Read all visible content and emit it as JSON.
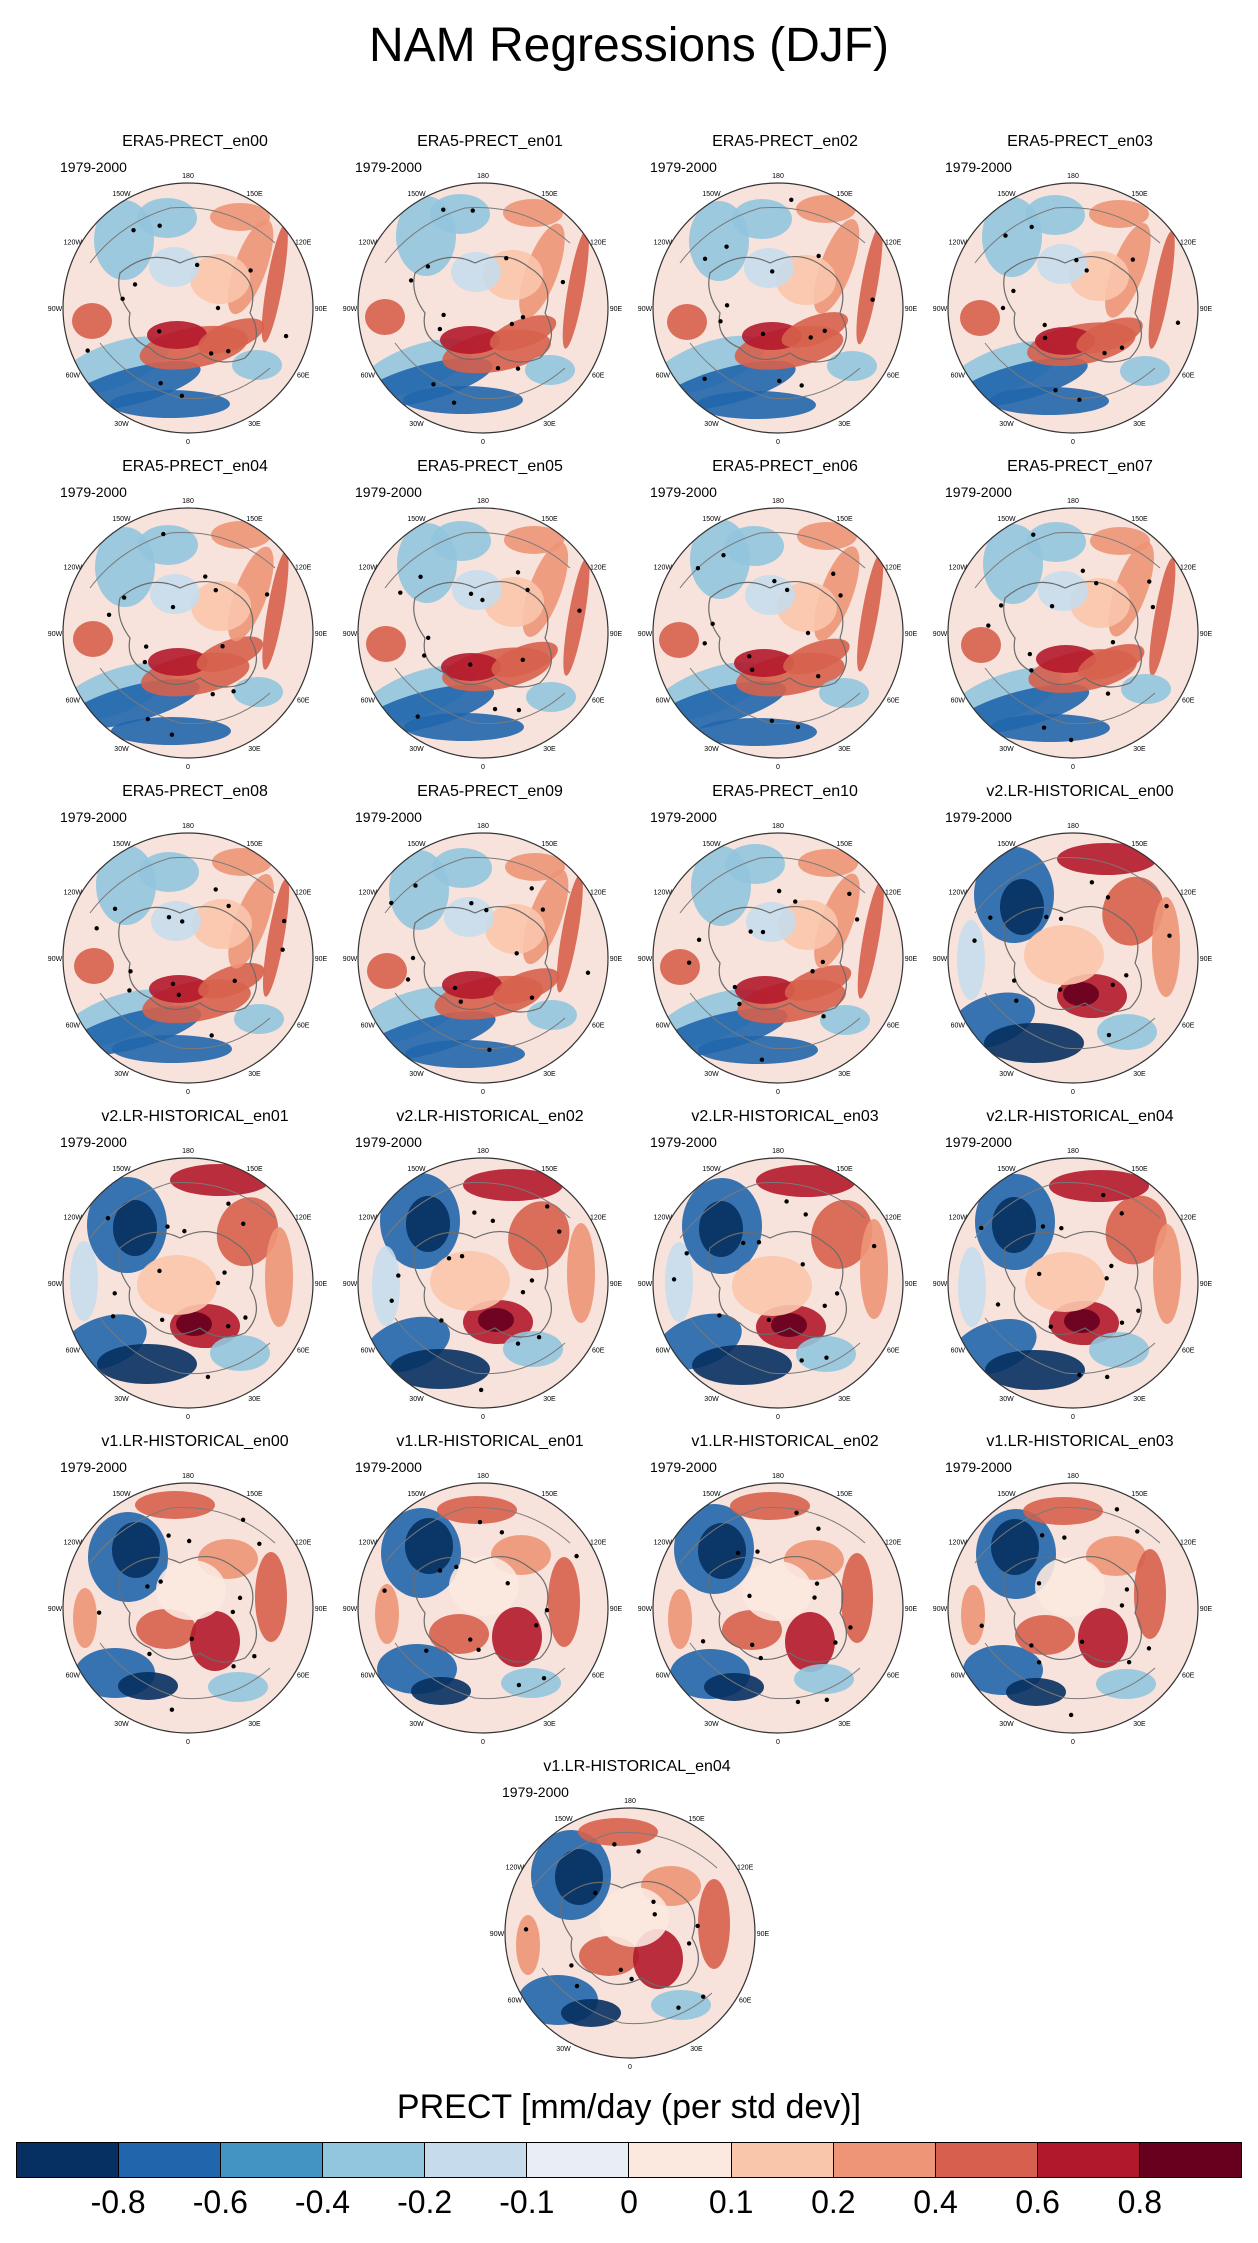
{
  "figure": {
    "title": "NAM Regressions (DJF)",
    "period": "1979-2000",
    "panels": [
      {
        "title": "ERA5-PRECT_en00",
        "group": "era5"
      },
      {
        "title": "ERA5-PRECT_en01",
        "group": "era5"
      },
      {
        "title": "ERA5-PRECT_en02",
        "group": "era5"
      },
      {
        "title": "ERA5-PRECT_en03",
        "group": "era5"
      },
      {
        "title": "ERA5-PRECT_en04",
        "group": "era5"
      },
      {
        "title": "ERA5-PRECT_en05",
        "group": "era5"
      },
      {
        "title": "ERA5-PRECT_en06",
        "group": "era5"
      },
      {
        "title": "ERA5-PRECT_en07",
        "group": "era5"
      },
      {
        "title": "ERA5-PRECT_en08",
        "group": "era5"
      },
      {
        "title": "ERA5-PRECT_en09",
        "group": "era5"
      },
      {
        "title": "ERA5-PRECT_en10",
        "group": "era5"
      },
      {
        "title": "v2.LR-HISTORICAL_en00",
        "group": "v2"
      },
      {
        "title": "v2.LR-HISTORICAL_en01",
        "group": "v2"
      },
      {
        "title": "v2.LR-HISTORICAL_en02",
        "group": "v2"
      },
      {
        "title": "v2.LR-HISTORICAL_en03",
        "group": "v2"
      },
      {
        "title": "v2.LR-HISTORICAL_en04",
        "group": "v2"
      },
      {
        "title": "v1.LR-HISTORICAL_en00",
        "group": "v1"
      },
      {
        "title": "v1.LR-HISTORICAL_en01",
        "group": "v1"
      },
      {
        "title": "v1.LR-HISTORICAL_en02",
        "group": "v1"
      },
      {
        "title": "v1.LR-HISTORICAL_en03",
        "group": "v1"
      },
      {
        "title": "v1.LR-HISTORICAL_en04",
        "group": "v1"
      }
    ],
    "longitude_labels": [
      "180",
      "150E",
      "120E",
      "90E",
      "60E",
      "30E",
      "0",
      "30W",
      "60W",
      "90W",
      "120W",
      "150W"
    ],
    "colorbar": {
      "title": "PRECT [mm/day (per std dev)]",
      "tick_labels": [
        "-0.8",
        "-0.6",
        "-0.4",
        "-0.2",
        "-0.1",
        "0",
        "0.1",
        "0.2",
        "0.4",
        "0.6",
        "0.8"
      ],
      "colors": [
        "#053061",
        "#2166ac",
        "#4393c3",
        "#92c5de",
        "#c6dcec",
        "#e8eef4",
        "#fbe8df",
        "#f9c5ab",
        "#ed9576",
        "#d6604d",
        "#b2182b",
        "#67001f"
      ]
    }
  }
}
